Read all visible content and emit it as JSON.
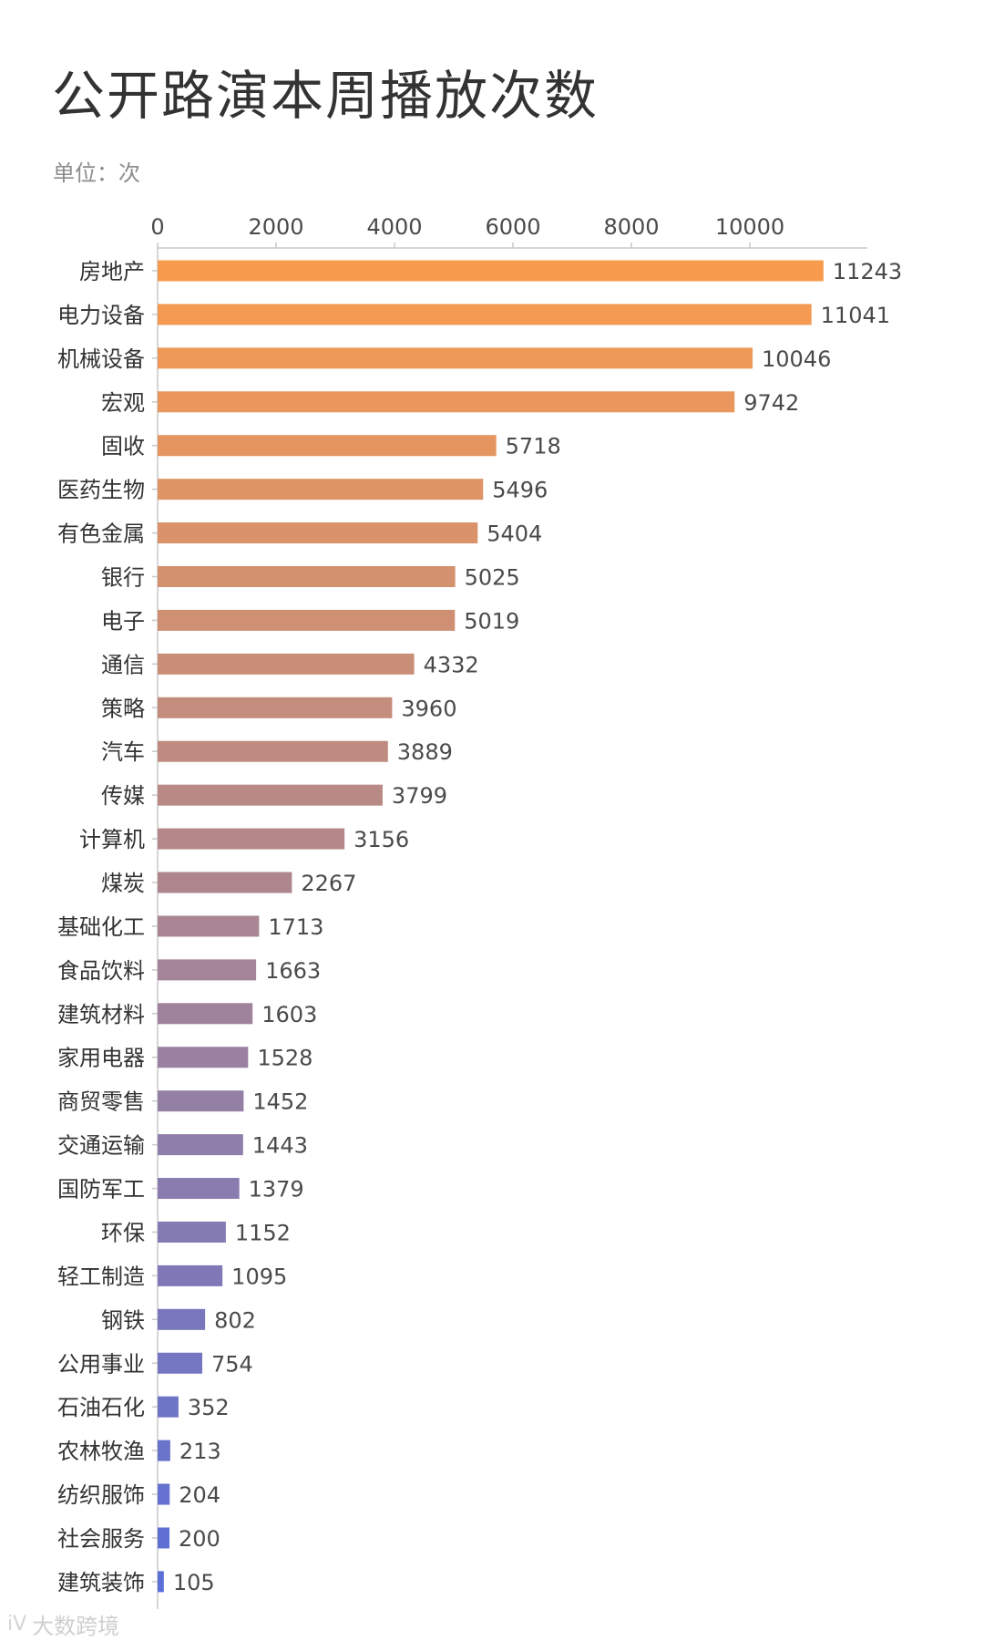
{
  "title": "公开路演本周播放次数",
  "unit_label": "单位：次",
  "watermark": {
    "logo_icon": "iv-logo-icon",
    "logo_text": "iV",
    "text": "大数跨境"
  },
  "chart_data": {
    "type": "bar",
    "orientation": "horizontal",
    "title": "公开路演本周播放次数",
    "xlabel": "",
    "ylabel": "",
    "unit": "次",
    "xlim": [
      0,
      11800
    ],
    "x_ticks": [
      0,
      2000,
      4000,
      6000,
      8000,
      10000
    ],
    "grid": false,
    "color_start": "#f99b4e",
    "color_end": "#5a6fd8",
    "categories": [
      "房地产",
      "电力设备",
      "机械设备",
      "宏观",
      "固收",
      "医药生物",
      "有色金属",
      "银行",
      "电子",
      "通信",
      "策略",
      "汽车",
      "传媒",
      "计算机",
      "煤炭",
      "基础化工",
      "食品饮料",
      "建筑材料",
      "家用电器",
      "商贸零售",
      "交通运输",
      "国防军工",
      "环保",
      "轻工制造",
      "钢铁",
      "公用事业",
      "石油石化",
      "农林牧渔",
      "纺织服饰",
      "社会服务",
      "建筑装饰"
    ],
    "values": [
      11243,
      11041,
      10046,
      9742,
      5718,
      5496,
      5404,
      5025,
      5019,
      4332,
      3960,
      3889,
      3799,
      3156,
      2267,
      1713,
      1663,
      1603,
      1528,
      1452,
      1443,
      1379,
      1152,
      1095,
      802,
      754,
      352,
      213,
      204,
      200,
      105
    ]
  }
}
